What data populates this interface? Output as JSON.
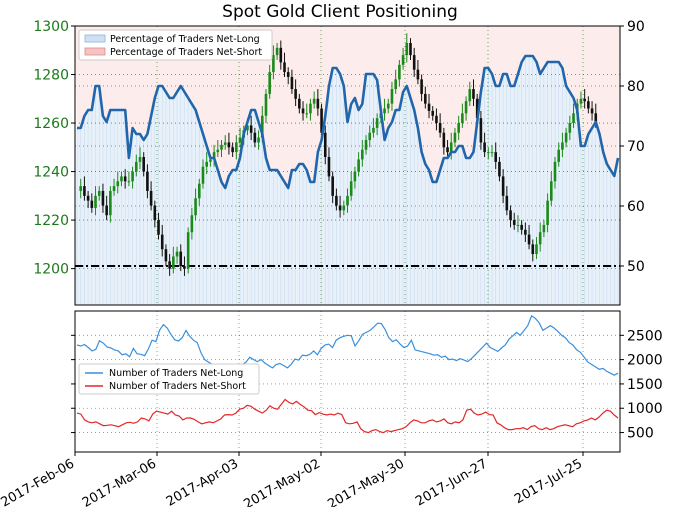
{
  "title": "Spot Gold Client Positioning",
  "colors": {
    "price_axis": "#1a7a1a",
    "pct_line": "#2166ac",
    "long_fill": "#d6e6f5",
    "short_fill": "#f7c8c8",
    "count_long": "#3a8fdc",
    "count_short": "#e32626",
    "candle_up": "#1a8a1a",
    "candle_down": "#111111"
  },
  "chart_data": [
    {
      "type": "line",
      "title": "Spot Gold Client Positioning",
      "left_axis": {
        "ticks": [
          "1200",
          "1220",
          "1240",
          "1260",
          "1280",
          "1300"
        ],
        "ylim": [
          1185,
          1300
        ]
      },
      "right_axis": {
        "ticks": [
          "50",
          "60",
          "70",
          "80",
          "90"
        ],
        "ylim": [
          43.5,
          90
        ]
      },
      "x_ticks": [
        "2017-Feb-06",
        "2017-Mar-06",
        "2017-Apr-03",
        "2017-May-02",
        "2017-May-30",
        "2017-Jun-27",
        "2017-Jul-25"
      ],
      "legend": [
        "Percentage of Traders Net-Long",
        "Percentage of Traders Net-Short"
      ],
      "reference_line": 50,
      "series": [
        {
          "name": "Percentage of Traders Net-Long",
          "axis": "right",
          "values": [
            73,
            73,
            75,
            76,
            76,
            80,
            80,
            75,
            74,
            76,
            76,
            76,
            76,
            76,
            68,
            73,
            72,
            72,
            71,
            72,
            75,
            78,
            80,
            80,
            79,
            78,
            78,
            79,
            80,
            79,
            78,
            77,
            76,
            74,
            72,
            70,
            68,
            68,
            66,
            64,
            63,
            65,
            66,
            66,
            68,
            72,
            74,
            76,
            76,
            74,
            72,
            68,
            66,
            66,
            66,
            65,
            64,
            63,
            66,
            66,
            67,
            67,
            66,
            64,
            64,
            69,
            71,
            75,
            80,
            83,
            83,
            82,
            80,
            74,
            77,
            78,
            76,
            77,
            82,
            82,
            82,
            81,
            76,
            71,
            73,
            74,
            76,
            76,
            79,
            80,
            78,
            76,
            73,
            69,
            67,
            66,
            64,
            64,
            66,
            68,
            68,
            69,
            69,
            70,
            70,
            68,
            68,
            69,
            74,
            79,
            83,
            83,
            82,
            80,
            80,
            82,
            82,
            80,
            80,
            82,
            84,
            85,
            85,
            85,
            84,
            82,
            83,
            84,
            84,
            84,
            84,
            83,
            80,
            79,
            78,
            76,
            70,
            70,
            72,
            73,
            74,
            72,
            69,
            67,
            66,
            65,
            68
          ],
          "color": "#2166ac"
        },
        {
          "name": "Price OHLC",
          "axis": "left",
          "type": "candlestick",
          "values": [
            1232,
            1234,
            1230,
            1228,
            1225,
            1230,
            1232,
            1226,
            1222,
            1232,
            1234,
            1236,
            1238,
            1236,
            1236,
            1240,
            1244,
            1246,
            1240,
            1232,
            1226,
            1220,
            1214,
            1208,
            1203,
            1200,
            1205,
            1207,
            1201,
            1200,
            1215,
            1222,
            1229,
            1235,
            1242,
            1244,
            1245,
            1248,
            1249,
            1251,
            1252,
            1250,
            1248,
            1252,
            1254,
            1257,
            1259,
            1256,
            1252,
            1254,
            1263,
            1272,
            1281,
            1288,
            1291,
            1285,
            1281,
            1279,
            1274,
            1270,
            1266,
            1264,
            1264,
            1268,
            1270,
            1266,
            1256,
            1246,
            1238,
            1230,
            1226,
            1224,
            1226,
            1230,
            1236,
            1240,
            1245,
            1249,
            1253,
            1256,
            1258,
            1262,
            1264,
            1266,
            1268,
            1274,
            1278,
            1284,
            1288,
            1293,
            1288,
            1282,
            1278,
            1272,
            1268,
            1265,
            1263,
            1260,
            1256,
            1250,
            1248,
            1252,
            1256,
            1260,
            1264,
            1269,
            1274,
            1270,
            1262,
            1252,
            1248,
            1248,
            1248,
            1244,
            1238,
            1230,
            1224,
            1220,
            1218,
            1218,
            1216,
            1214,
            1210,
            1206,
            1210,
            1215,
            1218,
            1228,
            1236,
            1244,
            1249,
            1252,
            1256,
            1260,
            1264,
            1268,
            1270,
            1269,
            1266,
            1264,
            1260
          ],
          "color": "#1a8a1a"
        }
      ]
    },
    {
      "type": "line",
      "right_axis": {
        "ticks": [
          "500",
          "1000",
          "1500",
          "2000",
          "2500"
        ],
        "ylim": [
          100,
          3000
        ]
      },
      "legend": [
        "Number of Traders Net-Long",
        "Number of Traders Net-Short"
      ],
      "series": [
        {
          "name": "Number of Traders Net-Long",
          "values": [
            2300,
            2280,
            2310,
            2250,
            2180,
            2210,
            2390,
            2340,
            2260,
            2240,
            2200,
            2180,
            2100,
            2120,
            2060,
            2230,
            2120,
            2110,
            2080,
            2220,
            2400,
            2370,
            2610,
            2720,
            2650,
            2520,
            2410,
            2380,
            2450,
            2600,
            2480,
            2400,
            2350,
            2140,
            2000,
            1950,
            1900,
            1880,
            1850,
            1860,
            1830,
            1800,
            1850,
            1900,
            1900,
            1950,
            2050,
            2000,
            1960,
            2000,
            1930,
            1880,
            1830,
            1900,
            1920,
            1880,
            1830,
            1900,
            2010,
            1990,
            2090,
            2080,
            2110,
            2180,
            2100,
            2230,
            2300,
            2320,
            2250,
            2400,
            2450,
            2480,
            2500,
            2490,
            2280,
            2390,
            2520,
            2560,
            2600,
            2670,
            2750,
            2740,
            2620,
            2450,
            2370,
            2410,
            2320,
            2250,
            2280,
            2400,
            2200,
            2180,
            2160,
            2140,
            2120,
            2090,
            2100,
            2050,
            2070,
            2000,
            2010,
            1980,
            2020,
            1990,
            1960,
            2020,
            2100,
            2180,
            2260,
            2340,
            2250,
            2210,
            2170,
            2240,
            2300,
            2420,
            2490,
            2560,
            2500,
            2600,
            2700,
            2900,
            2850,
            2760,
            2600,
            2650,
            2700,
            2650,
            2580,
            2500,
            2450,
            2350,
            2300,
            2200,
            2150,
            2050,
            1950,
            1900,
            1850,
            1800,
            1820,
            1760,
            1720,
            1680,
            1720
          ],
          "color": "#3a8fdc"
        },
        {
          "name": "Number of Traders Net-Short",
          "values": [
            900,
            880,
            760,
            720,
            700,
            720,
            680,
            640,
            650,
            660,
            640,
            620,
            660,
            700,
            710,
            690,
            720,
            800,
            780,
            740,
            880,
            940,
            920,
            900,
            880,
            940,
            860,
            840,
            760,
            800,
            800,
            770,
            720,
            680,
            700,
            720,
            700,
            740,
            780,
            860,
            870,
            860,
            900,
            980,
            1000,
            1060,
            1040,
            980,
            940,
            900,
            960,
            1050,
            1000,
            980,
            1080,
            1180,
            1120,
            1090,
            1140,
            1080,
            1030,
            960,
            950,
            870,
            910,
            880,
            860,
            880,
            860,
            900,
            870,
            700,
            680,
            690,
            720,
            580,
            520,
            500,
            540,
            560,
            520,
            500,
            540,
            520,
            540,
            560,
            580,
            620,
            700,
            760,
            740,
            700,
            700,
            740,
            760,
            720,
            740,
            780,
            700,
            680,
            720,
            700,
            760,
            960,
            980,
            900,
            860,
            880,
            920,
            870,
            860,
            700,
            660,
            600,
            560,
            560,
            580,
            580,
            600,
            560,
            620,
            640,
            580,
            560,
            600,
            560,
            580,
            620,
            640,
            660,
            640,
            620,
            680,
            700,
            740,
            760,
            800,
            760,
            820,
            900,
            960,
            940,
            860,
            800
          ],
          "color": "#e32626"
        }
      ]
    }
  ]
}
